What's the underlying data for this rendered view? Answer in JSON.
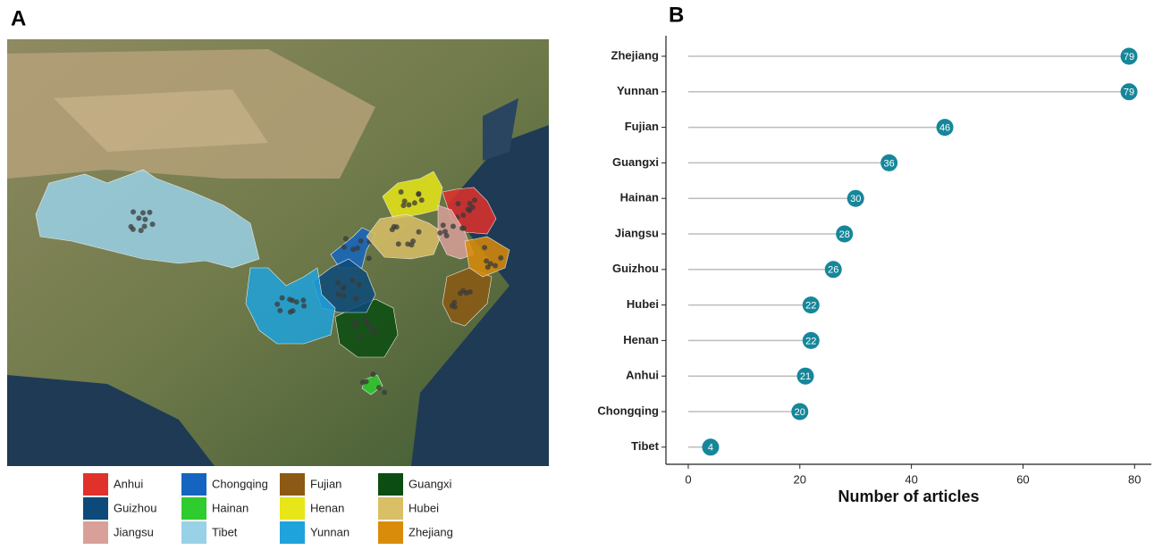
{
  "map": {
    "label": "A",
    "legend": [
      {
        "name": "Anhui",
        "color": "#e0312a"
      },
      {
        "name": "Chongqing",
        "color": "#1565c0"
      },
      {
        "name": "Fujian",
        "color": "#8c5a14"
      },
      {
        "name": "Guangxi",
        "color": "#0b4d12"
      },
      {
        "name": "Guizhou",
        "color": "#0d4a7a"
      },
      {
        "name": "Hainan",
        "color": "#2ecc2e"
      },
      {
        "name": "Henan",
        "color": "#e6e619"
      },
      {
        "name": "Hubei",
        "color": "#d9bf66"
      },
      {
        "name": "Jiangsu",
        "color": "#d9a09a"
      },
      {
        "name": "Tibet",
        "color": "#99d1e6"
      },
      {
        "name": "Yunnan",
        "color": "#1fa3dc"
      },
      {
        "name": "Zhejiang",
        "color": "#d98c0a"
      }
    ]
  },
  "chart_data": {
    "type": "lollipop",
    "label": "B",
    "categories": [
      "Zhejiang",
      "Yunnan",
      "Fujian",
      "Guangxi",
      "Hainan",
      "Jiangsu",
      "Guizhou",
      "Hubei",
      "Henan",
      "Anhui",
      "Chongqing",
      "Tibet"
    ],
    "values": [
      79,
      79,
      46,
      36,
      30,
      28,
      26,
      22,
      22,
      21,
      20,
      4
    ],
    "color": "#16879a",
    "stem_color": "#bdbdbd",
    "xlim": [
      -4,
      83
    ],
    "xticks": [
      0,
      20,
      40,
      60,
      80
    ],
    "x_label": "Number of articles"
  }
}
